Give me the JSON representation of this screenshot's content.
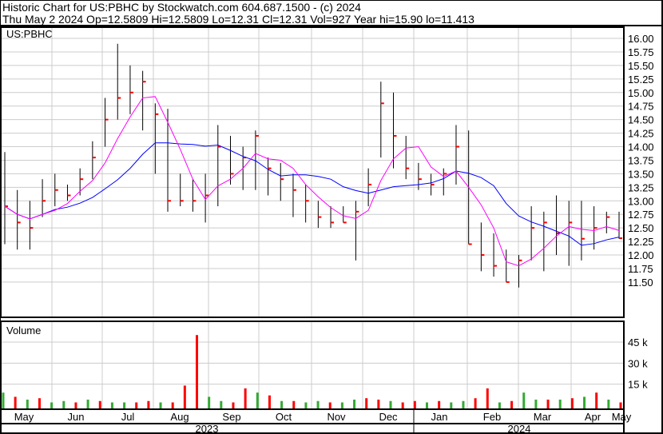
{
  "header": {
    "title": "Historic Chart for US:PBHC by Stockwatch.com 604.687.1500 - (c) 2024",
    "quote": "Thu May  2 2024   Op=12.5809   Hi=12.5809   Lo=12.31   Cl=12.31   Vol=927   Year hi=15.90   lo=11.413"
  },
  "chart_data": [
    {
      "type": "ohlc",
      "title": "US:PBHC",
      "ylim": [
        11.25,
        16.2
      ],
      "yticks": [
        "16.00",
        "15.75",
        "15.50",
        "15.25",
        "15.00",
        "14.75",
        "14.50",
        "14.25",
        "14.00",
        "13.75",
        "13.50",
        "13.25",
        "13.00",
        "12.75",
        "12.50",
        "12.25",
        "12.00",
        "11.75",
        "11.50"
      ],
      "x_months": [
        "May",
        "Jun",
        "Jul",
        "Aug",
        "Sep",
        "Oct",
        "Nov",
        "Dec",
        "Jan",
        "Feb",
        "Mar",
        "Apr",
        "May"
      ],
      "x_years": [
        "2023",
        "2024"
      ],
      "weekly_high": [
        13.9,
        13.2,
        13.0,
        13.4,
        13.5,
        13.3,
        13.6,
        14.1,
        14.9,
        15.9,
        15.5,
        15.4,
        14.8,
        14.7,
        13.5,
        13.4,
        13.5,
        14.4,
        14.2,
        14.0,
        14.3,
        13.8,
        13.7,
        13.5,
        13.3,
        13.0,
        12.9,
        12.9,
        13.0,
        13.6,
        15.2,
        15.0,
        14.2,
        13.7,
        13.5,
        13.6,
        14.4,
        14.3,
        12.6,
        12.4,
        12.1,
        12.0,
        12.9,
        12.8,
        13.1,
        13.0,
        13.0,
        12.9,
        12.8,
        12.8
      ],
      "weekly_low": [
        12.2,
        12.1,
        12.1,
        12.7,
        12.9,
        13.0,
        13.1,
        13.4,
        14.0,
        14.5,
        14.6,
        14.3,
        13.5,
        12.8,
        12.9,
        12.8,
        12.6,
        12.9,
        13.3,
        13.2,
        13.2,
        13.1,
        13.0,
        12.7,
        12.6,
        12.5,
        12.5,
        12.6,
        11.9,
        12.9,
        13.8,
        13.6,
        13.4,
        13.2,
        13.1,
        13.1,
        13.3,
        12.2,
        11.7,
        11.6,
        11.5,
        11.4,
        11.9,
        11.7,
        12.0,
        11.8,
        11.9,
        12.1,
        12.4,
        12.3
      ],
      "weekly_close": [
        12.9,
        12.6,
        12.5,
        13.0,
        13.2,
        13.1,
        13.4,
        13.8,
        14.5,
        14.9,
        15.0,
        15.2,
        14.6,
        13.0,
        13.0,
        13.0,
        13.1,
        14.0,
        13.5,
        13.8,
        14.2,
        13.6,
        13.4,
        13.2,
        13.0,
        12.7,
        12.6,
        12.6,
        12.8,
        13.3,
        14.8,
        14.2,
        13.6,
        13.4,
        13.3,
        13.5,
        14.0,
        12.2,
        12.0,
        11.8,
        11.5,
        11.9,
        12.5,
        12.6,
        12.4,
        12.6,
        12.3,
        12.5,
        12.7,
        12.31
      ],
      "moving_averages": [
        {
          "color": "#0000ff",
          "period": 10
        },
        {
          "color": "#ff00ff",
          "period": 4
        }
      ],
      "bar_color": "#000000",
      "close_tick_color": "#ff0000"
    },
    {
      "type": "bar",
      "title": "Volume",
      "yticks": [
        "45 k",
        "30 k",
        "15 k"
      ],
      "ylim": [
        0,
        52
      ],
      "values_k": [
        9,
        6,
        4,
        5,
        2,
        3,
        2,
        4,
        3,
        2,
        2,
        2,
        3,
        2,
        2,
        14,
        50,
        6,
        3,
        2,
        12,
        9,
        7,
        3,
        3,
        2,
        3,
        2,
        2,
        4,
        5,
        4,
        3,
        2,
        3,
        2,
        3,
        2,
        3,
        5,
        12,
        2,
        3,
        9,
        4,
        4,
        4,
        5,
        6,
        9,
        4,
        2
      ],
      "up_flags": [
        1,
        0,
        1,
        0,
        1,
        1,
        0,
        1,
        0,
        1,
        1,
        0,
        0,
        1,
        0,
        0,
        0,
        1,
        1,
        0,
        0,
        1,
        0,
        1,
        0,
        1,
        1,
        0,
        1,
        1,
        0,
        0,
        1,
        0,
        0,
        1,
        0,
        1,
        1,
        0,
        0,
        1,
        0,
        1,
        1,
        0,
        1,
        0,
        1,
        0,
        1,
        0
      ],
      "up_color": "#33aa33",
      "down_color": "#ff0000"
    }
  ]
}
